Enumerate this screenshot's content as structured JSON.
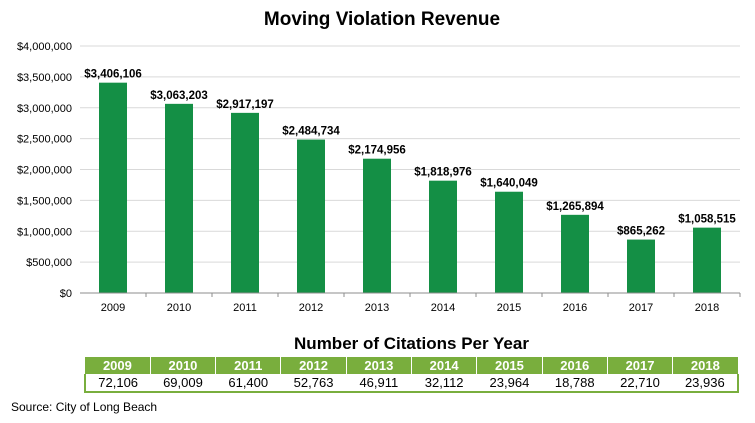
{
  "chart_data": {
    "type": "bar",
    "title": "Moving Violation Revenue",
    "categories": [
      "2009",
      "2010",
      "2011",
      "2012",
      "2013",
      "2014",
      "2015",
      "2016",
      "2017",
      "2018"
    ],
    "values": [
      3406106,
      3063203,
      2917197,
      2484734,
      2174956,
      1818976,
      1640049,
      1265894,
      865262,
      1058515
    ],
    "data_labels": [
      "$3,406,106",
      "$3,063,203",
      "$2,917,197",
      "$2,484,734",
      "$2,174,956",
      "$1,818,976",
      "$1,640,049",
      "$1,265,894",
      "$865,262",
      "$1,058,515"
    ],
    "yticks": [
      0,
      500000,
      1000000,
      1500000,
      2000000,
      2500000,
      3000000,
      3500000,
      4000000
    ],
    "ytick_labels": [
      "$0",
      "$500,000",
      "$1,000,000",
      "$1,500,000",
      "$2,000,000",
      "$2,500,000",
      "$3,000,000",
      "$3,500,000",
      "$4,000,000"
    ],
    "ylim": [
      0,
      4000000
    ],
    "grid": true,
    "bar_color": "#148f45",
    "grid_color": "#d9d9d9"
  },
  "citations_table": {
    "title": "Number of Citations Per Year",
    "years": [
      "2009",
      "2010",
      "2011",
      "2012",
      "2013",
      "2014",
      "2015",
      "2016",
      "2017",
      "2018"
    ],
    "counts": [
      "72,106",
      "69,009",
      "61,400",
      "52,763",
      "46,911",
      "32,112",
      "23,964",
      "18,788",
      "22,710",
      "23,936"
    ],
    "header_color": "#79ae3d"
  },
  "source": "Source: City of Long Beach"
}
